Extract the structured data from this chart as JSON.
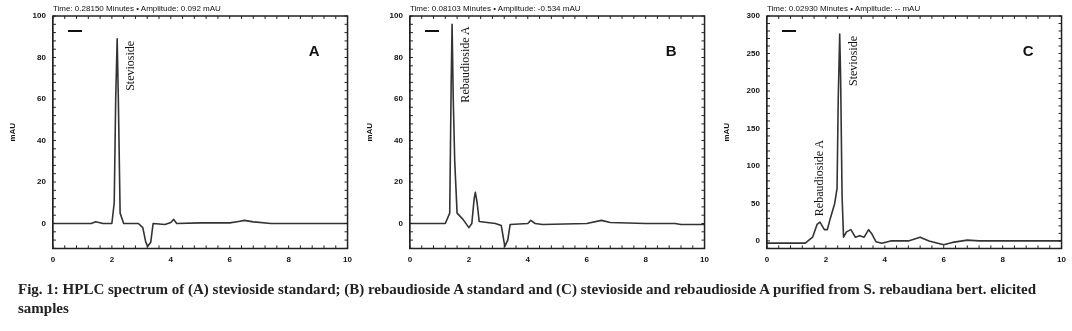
{
  "chart_data": [
    {
      "type": "line",
      "subtitle": "Time: 0.28150 Minutes • Amplitude: 0.092 mAU",
      "ylabel": "mAU",
      "xlim": [
        0,
        10
      ],
      "xticks": [
        0,
        2,
        4,
        6,
        8,
        10
      ],
      "ylim": [
        -12,
        100
      ],
      "yticks": [
        0,
        20,
        40,
        60,
        80,
        100
      ],
      "grid": false,
      "legend": false,
      "marker": "none",
      "line_style": "solid",
      "series": [
        {
          "color": "#333333",
          "x": [
            0,
            1.3,
            1.45,
            1.7,
            2.0,
            2.08,
            2.13,
            2.18,
            2.22,
            2.28,
            2.4,
            2.9,
            3.05,
            3.15,
            3.22,
            3.32,
            3.4,
            3.8,
            4.0,
            4.1,
            4.2,
            5,
            6,
            6.3,
            6.5,
            6.8,
            7.4,
            10
          ],
          "values": [
            0,
            0,
            0.8,
            0,
            0,
            10,
            60,
            89,
            60,
            5,
            0,
            0,
            -2,
            -9,
            -11,
            -9,
            0,
            -0.5,
            0.5,
            2,
            0,
            0.3,
            0.3,
            1,
            1.5,
            0.8,
            0,
            0
          ]
        }
      ],
      "annotations": [
        {
          "text": "Stevioside",
          "x": 2.18,
          "y": 89
        },
        "A",
        "Fig. 1: HPLC spectrum of (A) stevioside standard; (B) rebaudioside A standard and (C) stevioside and rebaudioside A purified from S. rebaudiana bert. elicited samples"
      ]
    },
    {
      "type": "line",
      "subtitle": "Time: 0.08103 Minutes • Amplitude: -0.534 mAU",
      "ylabel": "mAU",
      "xlim": [
        0,
        10
      ],
      "xticks": [
        0,
        2,
        4,
        6,
        8,
        10
      ],
      "ylim": [
        -12,
        100
      ],
      "yticks": [
        0,
        20,
        40,
        60,
        80,
        100
      ],
      "grid": false,
      "legend": false,
      "marker": "none",
      "line_style": "solid",
      "series": [
        {
          "color": "#333333",
          "x": [
            0,
            1.2,
            1.35,
            1.4,
            1.43,
            1.47,
            1.52,
            1.6,
            1.8,
            2.0,
            2.1,
            2.18,
            2.22,
            2.28,
            2.35,
            2.9,
            3.1,
            3.22,
            3.32,
            3.4,
            4.0,
            4.1,
            4.25,
            4.5,
            6,
            6.5,
            6.8,
            8,
            9,
            9.2,
            10
          ],
          "values": [
            0,
            0,
            5,
            68,
            96,
            60,
            30,
            5,
            2,
            -2,
            0,
            12,
            15,
            10,
            1,
            0,
            -1,
            -11,
            -8,
            -0.5,
            0,
            1.5,
            0,
            -0.5,
            0,
            1.5,
            0.5,
            0,
            0,
            -0.5,
            -0.5
          ]
        }
      ],
      "annotations": [
        {
          "text": "Rebaudioside A",
          "x": 1.43,
          "y": 96
        },
        "B"
      ]
    },
    {
      "type": "line",
      "subtitle": "Time: 0.02930 Minutes • Amplitude: -- mAU",
      "ylabel": "mAU",
      "xlim": [
        0,
        10
      ],
      "xticks": [
        0,
        2,
        4,
        6,
        8,
        10
      ],
      "ylim": [
        -10,
        300
      ],
      "yticks": [
        0,
        50,
        100,
        150,
        200,
        250,
        300
      ],
      "grid": false,
      "legend": false,
      "marker": "none",
      "line_style": "solid",
      "series": [
        {
          "color": "#333333",
          "x": [
            0,
            1.3,
            1.55,
            1.7,
            1.8,
            1.95,
            2.05,
            2.15,
            2.3,
            2.38,
            2.42,
            2.47,
            2.5,
            2.55,
            2.6,
            2.7,
            2.85,
            3.0,
            3.15,
            3.3,
            3.45,
            3.55,
            3.7,
            3.9,
            4.2,
            4.5,
            4.8,
            5.2,
            5.5,
            6.0,
            6.3,
            6.8,
            7.2,
            10
          ],
          "values": [
            -3,
            -3,
            5,
            22,
            25,
            15,
            15,
            30,
            50,
            70,
            190,
            276,
            220,
            60,
            5,
            12,
            15,
            5,
            7,
            5,
            15,
            10,
            -1,
            -3,
            0,
            0,
            0,
            5,
            0,
            -5,
            -2,
            1,
            0,
            0
          ]
        }
      ],
      "annotations": [
        {
          "text": "Stevioside",
          "x": 2.47,
          "y": 276
        },
        {
          "text": "Rebaudioside A",
          "x": 1.8,
          "y": 25
        },
        "C"
      ]
    }
  ]
}
